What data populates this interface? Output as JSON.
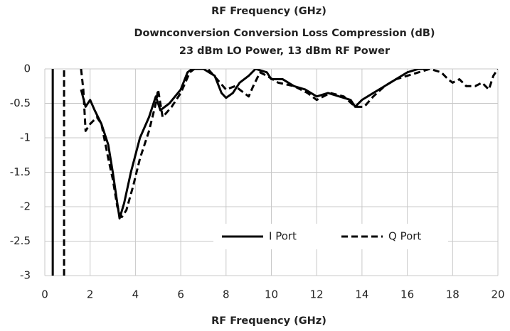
{
  "chart_data": {
    "type": "line",
    "top_label": "RF Frequency (GHz)",
    "title": "Downconversion Conversion Loss Compression (dB)",
    "subtitle": "23 dBm LO Power, 13 dBm RF Power",
    "x_label": "RF Frequency (GHz)",
    "xlim": [
      0,
      20
    ],
    "ylim": [
      -3,
      0
    ],
    "xticks": [
      0,
      2,
      4,
      6,
      8,
      10,
      12,
      14,
      16,
      18,
      20
    ],
    "yticks": [
      0,
      -0.5,
      -1,
      -1.5,
      -2,
      -2.5,
      -3
    ],
    "grid": true,
    "legend": "lower right",
    "series": [
      {
        "name": "I Port",
        "color": "#000000",
        "dash": "solid",
        "x": [
          0.35,
          0.35,
          1.0,
          1.6,
          1.8,
          2.0,
          2.2,
          2.5,
          2.8,
          3.0,
          3.2,
          3.3,
          3.5,
          3.8,
          4.2,
          4.6,
          4.9,
          5.1,
          5.5,
          6.0,
          6.3,
          6.5,
          7.0,
          7.5,
          7.8,
          8.0,
          8.3,
          8.6,
          9.0,
          9.3,
          9.8,
          10.0,
          10.5,
          11.0,
          11.5,
          12.0,
          12.5,
          13.0,
          13.5,
          13.7,
          14.0,
          14.5,
          15.0,
          15.5,
          16.0,
          16.5,
          17.0
        ],
        "values": [
          -3,
          0,
          null,
          -0.3,
          -0.55,
          -0.45,
          -0.6,
          -0.8,
          -1.1,
          -1.5,
          -1.95,
          -2.17,
          -1.95,
          -1.5,
          -1.0,
          -0.7,
          -0.4,
          -0.6,
          -0.5,
          -0.3,
          -0.05,
          0,
          0,
          -0.1,
          -0.35,
          -0.42,
          -0.35,
          -0.2,
          -0.1,
          0,
          -0.05,
          -0.15,
          -0.15,
          -0.25,
          -0.3,
          -0.4,
          -0.35,
          -0.4,
          -0.45,
          -0.55,
          -0.45,
          -0.35,
          -0.25,
          -0.15,
          -0.05,
          0,
          0
        ]
      },
      {
        "name": "Q Port",
        "color": "#000000",
        "dash": "dashed",
        "x": [
          0.85,
          0.85,
          1.2,
          1.6,
          1.7,
          1.8,
          2.0,
          2.3,
          2.5,
          2.8,
          3.0,
          3.2,
          3.4,
          3.6,
          3.9,
          4.2,
          4.6,
          4.9,
          5.0,
          5.2,
          5.6,
          6.0,
          6.4,
          6.6,
          7.2,
          7.6,
          8.0,
          8.4,
          8.8,
          9.0,
          9.2,
          9.5,
          9.8,
          10.3,
          11.0,
          11.6,
          12.0,
          12.6,
          13.2,
          13.7,
          14.1,
          14.5,
          15.0,
          15.5,
          16.0,
          16.5,
          17.0,
          17.5,
          17.8,
          18.0,
          18.3,
          18.6,
          19.0,
          19.3,
          19.6,
          19.8,
          20.0
        ],
        "values": [
          -3,
          0,
          null,
          0,
          -0.3,
          -0.9,
          -0.8,
          -0.7,
          -0.8,
          -1.3,
          -1.6,
          -2.0,
          -2.15,
          -2.05,
          -1.7,
          -1.3,
          -0.9,
          -0.5,
          -0.3,
          -0.7,
          -0.55,
          -0.35,
          -0.05,
          0,
          0,
          -0.15,
          -0.3,
          -0.25,
          -0.35,
          -0.4,
          -0.25,
          -0.05,
          -0.1,
          -0.2,
          -0.25,
          -0.35,
          -0.45,
          -0.35,
          -0.4,
          -0.55,
          -0.55,
          -0.4,
          -0.25,
          -0.15,
          -0.1,
          -0.05,
          0,
          -0.05,
          -0.15,
          -0.2,
          -0.15,
          -0.25,
          -0.25,
          -0.2,
          -0.3,
          -0.1,
          0
        ]
      }
    ]
  }
}
